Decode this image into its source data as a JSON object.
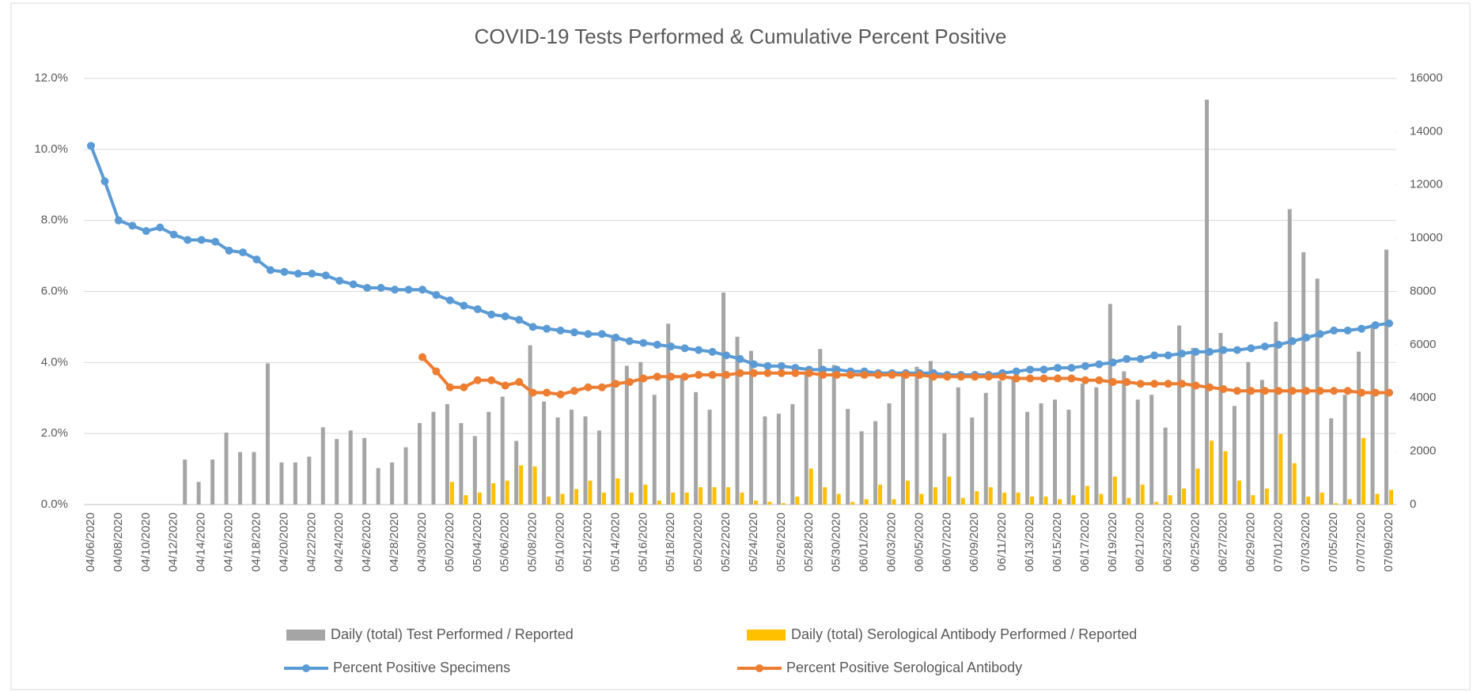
{
  "chart_data": {
    "type": "combo",
    "title": "COVID-19 Tests Performed & Cumulative Percent Positive",
    "categories": [
      "04/06/2020",
      null,
      "04/08/2020",
      null,
      "04/10/2020",
      null,
      "04/12/2020",
      null,
      "04/14/2020",
      null,
      "04/16/2020",
      null,
      "04/18/2020",
      null,
      "04/20/2020",
      null,
      "04/22/2020",
      null,
      "04/24/2020",
      null,
      "04/26/2020",
      null,
      "04/28/2020",
      null,
      "04/30/2020",
      null,
      "05/02/2020",
      null,
      "05/04/2020",
      null,
      "05/06/2020",
      null,
      "05/08/2020",
      null,
      "05/10/2020",
      null,
      "05/12/2020",
      null,
      "05/14/2020",
      null,
      "05/16/2020",
      null,
      "05/18/2020",
      null,
      "05/20/2020",
      null,
      "05/22/2020",
      null,
      "05/24/2020",
      null,
      "05/26/2020",
      null,
      "05/28/2020",
      null,
      "05/30/2020",
      null,
      "06/01/2020",
      null,
      "06/03/2020",
      null,
      "06/05/2020",
      null,
      "06/07/2020",
      null,
      "06/09/2020",
      null,
      "06/11/2020",
      null,
      "06/13/2020",
      null,
      "06/15/2020",
      null,
      "06/17/2020",
      null,
      "06/19/2020",
      null,
      "06/21/2020",
      null,
      "06/23/2020",
      null,
      "06/25/2020",
      null,
      "06/27/2020",
      null,
      "06/29/2020",
      null,
      "07/01/2020",
      null,
      "07/03/2020",
      null,
      "07/05/2020",
      null,
      "07/07/2020",
      null,
      "07/09/2020"
    ],
    "series": [
      {
        "name": "Daily (total) Test Performed / Reported",
        "type": "bar",
        "axis": "y2",
        "color": "#a5a5a5",
        "values": [
          0,
          0,
          0,
          0,
          0,
          0,
          0,
          1690,
          850,
          1690,
          2700,
          1970,
          1970,
          5300,
          1580,
          1580,
          1800,
          2900,
          2460,
          2780,
          2500,
          1370,
          1580,
          2150,
          3060,
          3480,
          3770,
          3060,
          2570,
          3480,
          4050,
          2390,
          5980,
          3870,
          3270,
          3560,
          3310,
          2780,
          6370,
          5210,
          5350,
          4120,
          6790,
          4820,
          4220,
          3560,
          7960,
          6300,
          5770,
          3310,
          3410,
          3770,
          4960,
          5840,
          5240,
          3590,
          2750,
          3130,
          3800,
          4820,
          5170,
          5390,
          2680,
          4400,
          3270,
          4190,
          4650,
          4820,
          3480,
          3800,
          3940,
          3560,
          4540,
          4400,
          7530,
          5000,
          3940,
          4120,
          2890,
          6720,
          5880,
          15200,
          6440,
          3700,
          5350,
          4680,
          6860,
          11090,
          9470,
          8480,
          3240,
          4120,
          5740,
          6760,
          9570
        ]
      },
      {
        "name": "Daily (total) Serological Antibody Performed / Reported",
        "type": "bar",
        "axis": "y2",
        "color": "#ffc000",
        "values": [
          0,
          0,
          0,
          0,
          0,
          0,
          0,
          0,
          0,
          0,
          0,
          0,
          0,
          0,
          0,
          0,
          0,
          0,
          0,
          0,
          0,
          0,
          0,
          0,
          0,
          0,
          850,
          350,
          450,
          800,
          900,
          1470,
          1430,
          300,
          400,
          580,
          900,
          450,
          980,
          450,
          750,
          150,
          450,
          450,
          650,
          650,
          650,
          450,
          150,
          100,
          50,
          300,
          1350,
          650,
          400,
          100,
          200,
          750,
          200,
          900,
          400,
          650,
          1050,
          250,
          500,
          650,
          450,
          450,
          300,
          300,
          200,
          350,
          700,
          400,
          1050,
          250,
          750,
          100,
          350,
          600,
          1350,
          2400,
          2000,
          900,
          350,
          600,
          2650,
          1550,
          300,
          450,
          50,
          200,
          2500,
          400,
          550
        ]
      },
      {
        "name": "Percent Positive Specimens",
        "type": "line",
        "color": "#5b9bd5",
        "values": [
          10.1,
          9.1,
          8.0,
          7.85,
          7.7,
          7.8,
          7.6,
          7.45,
          7.45,
          7.4,
          7.15,
          7.1,
          6.9,
          6.6,
          6.55,
          6.5,
          6.5,
          6.45,
          6.3,
          6.2,
          6.1,
          6.1,
          6.05,
          6.05,
          6.05,
          5.9,
          5.75,
          5.6,
          5.5,
          5.35,
          5.3,
          5.2,
          5.0,
          4.95,
          4.9,
          4.85,
          4.8,
          4.8,
          4.7,
          4.6,
          4.55,
          4.5,
          4.45,
          4.4,
          4.35,
          4.3,
          4.2,
          4.1,
          3.95,
          3.9,
          3.9,
          3.85,
          3.8,
          3.8,
          3.8,
          3.75,
          3.75,
          3.7,
          3.7,
          3.7,
          3.7,
          3.7,
          3.65,
          3.65,
          3.65,
          3.65,
          3.7,
          3.75,
          3.8,
          3.8,
          3.85,
          3.85,
          3.9,
          3.95,
          4.0,
          4.1,
          4.1,
          4.2,
          4.2,
          4.25,
          4.3,
          4.3,
          4.35,
          4.35,
          4.4,
          4.45,
          4.5,
          4.6,
          4.7,
          4.8,
          4.9,
          4.9,
          4.95,
          5.05,
          5.1
        ]
      },
      {
        "name": "Percent Positive Serological Antibody",
        "type": "line",
        "color": "#ed7d31",
        "values": [
          null,
          null,
          null,
          null,
          null,
          null,
          null,
          null,
          null,
          null,
          null,
          null,
          null,
          null,
          null,
          null,
          null,
          null,
          null,
          null,
          null,
          null,
          null,
          null,
          4.15,
          3.75,
          3.3,
          3.3,
          3.5,
          3.5,
          3.35,
          3.45,
          3.15,
          3.15,
          3.1,
          3.2,
          3.3,
          3.3,
          3.4,
          3.45,
          3.55,
          3.6,
          3.6,
          3.6,
          3.65,
          3.65,
          3.65,
          3.7,
          3.7,
          3.7,
          3.7,
          3.7,
          3.7,
          3.65,
          3.65,
          3.65,
          3.65,
          3.65,
          3.65,
          3.65,
          3.65,
          3.6,
          3.6,
          3.6,
          3.6,
          3.6,
          3.6,
          3.55,
          3.55,
          3.55,
          3.55,
          3.55,
          3.5,
          3.5,
          3.45,
          3.45,
          3.4,
          3.4,
          3.4,
          3.4,
          3.35,
          3.3,
          3.25,
          3.2,
          3.2,
          3.2,
          3.2,
          3.2,
          3.2,
          3.2,
          3.2,
          3.2,
          3.15,
          3.15,
          3.15
        ]
      }
    ],
    "ylim": [
      0,
      12
    ],
    "yticks": [
      {
        "value": 0,
        "label": "0.0%"
      },
      {
        "value": 2,
        "label": "2.0%"
      },
      {
        "value": 4,
        "label": "4.0%"
      },
      {
        "value": 6,
        "label": "6.0%"
      },
      {
        "value": 8,
        "label": "8.0%"
      },
      {
        "value": 10,
        "label": "10.0%"
      },
      {
        "value": 12,
        "label": "12.0%"
      }
    ],
    "y2lim": [
      0,
      16000
    ],
    "y2ticks": [
      0,
      2000,
      4000,
      6000,
      8000,
      10000,
      12000,
      14000,
      16000
    ],
    "grid": true,
    "legend": "bottom"
  }
}
